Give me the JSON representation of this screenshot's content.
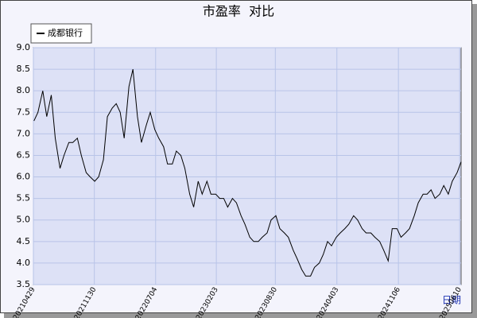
{
  "chart_data": {
    "type": "line",
    "title": "市盈率  对比",
    "x_label": "日期",
    "x": [
      "20210501",
      "20210515",
      "20210601",
      "20210615",
      "20210701",
      "20210715",
      "20210801",
      "20210815",
      "20210901",
      "20210915",
      "20211001",
      "20211015",
      "20211101",
      "20211115",
      "20211201",
      "20211215",
      "20220101",
      "20220115",
      "20220201",
      "20220215",
      "20220301",
      "20220315",
      "20220401",
      "20220415",
      "20220501",
      "20220515",
      "20220601",
      "20220615",
      "20220701",
      "20220715",
      "20220801",
      "20220815",
      "20220901",
      "20220915",
      "20221001",
      "20221015",
      "20221101",
      "20221115",
      "20221201",
      "20221215",
      "20230101",
      "20230115",
      "20230201",
      "20230215",
      "20230301",
      "20230315",
      "20230401",
      "20230415",
      "20230501",
      "20230515",
      "20230601",
      "20230615",
      "20230701",
      "20230715",
      "20230801",
      "20230815",
      "20230901",
      "20230915",
      "20231001",
      "20231015",
      "20231101",
      "20231115",
      "20231201",
      "20231215",
      "20240101",
      "20240115",
      "20240201",
      "20240215",
      "20240301",
      "20240315",
      "20240401",
      "20240415",
      "20240501",
      "20240515",
      "20240601",
      "20240615",
      "20240701",
      "20240715",
      "20240801",
      "20240815",
      "20240901",
      "20240915",
      "20241001",
      "20241015",
      "20241101",
      "20241115",
      "20241201",
      "20241215",
      "20250101",
      "20250115",
      "20250201",
      "20250215",
      "20250301",
      "20250315",
      "20250401",
      "20250415",
      "20250501",
      "20250515",
      "20250601",
      "20250615"
    ],
    "series": [
      {
        "name": "成都银行",
        "color": "#000000",
        "values": [
          7.3,
          7.5,
          8.0,
          7.4,
          7.9,
          6.9,
          6.2,
          6.5,
          6.8,
          6.8,
          6.9,
          6.5,
          6.1,
          6.0,
          5.9,
          6.0,
          6.4,
          7.4,
          7.6,
          7.7,
          7.5,
          6.9,
          8.1,
          8.5,
          7.4,
          6.8,
          7.2,
          7.5,
          7.1,
          6.9,
          6.7,
          6.3,
          6.3,
          6.6,
          6.5,
          6.2,
          5.6,
          5.3,
          5.9,
          5.6,
          5.9,
          5.6,
          5.6,
          5.5,
          5.5,
          5.3,
          5.5,
          5.4,
          5.1,
          4.9,
          4.6,
          4.5,
          4.5,
          4.6,
          4.7,
          5.0,
          5.1,
          4.8,
          4.7,
          4.6,
          4.3,
          4.1,
          3.85,
          3.7,
          3.7,
          3.9,
          4.0,
          4.2,
          4.5,
          4.4,
          4.6,
          4.7,
          4.8,
          4.9,
          5.1,
          5.0,
          4.8,
          4.7,
          4.7,
          4.6,
          4.5,
          4.3,
          4.05,
          4.8,
          4.8,
          4.6,
          4.7,
          4.8,
          5.1,
          5.4,
          5.6,
          5.6,
          5.7,
          5.5,
          5.6,
          5.8,
          5.6,
          5.9,
          6.1,
          6.35
        ]
      }
    ],
    "xlim": [
      "20210429",
      "20250615"
    ],
    "xticks": [
      "20210429",
      "20211130",
      "20220704",
      "20230203",
      "20230830",
      "20240403",
      "20241106",
      "20250610"
    ],
    "ylim": [
      3.5,
      9.0
    ],
    "yticks": [
      3.5,
      {
        "value": 4.0,
        "label": "4.0"
      },
      4.5,
      {
        "value": 5.0,
        "label": "5.0"
      },
      5.5,
      {
        "value": 6.0,
        "label": "6.0"
      },
      6.5,
      {
        "value": 7.0,
        "label": "7.0"
      },
      7.5,
      {
        "value": 8.0,
        "label": "8.0"
      },
      8.5,
      {
        "value": 9.0,
        "label": "9.0"
      }
    ],
    "grid": true
  }
}
